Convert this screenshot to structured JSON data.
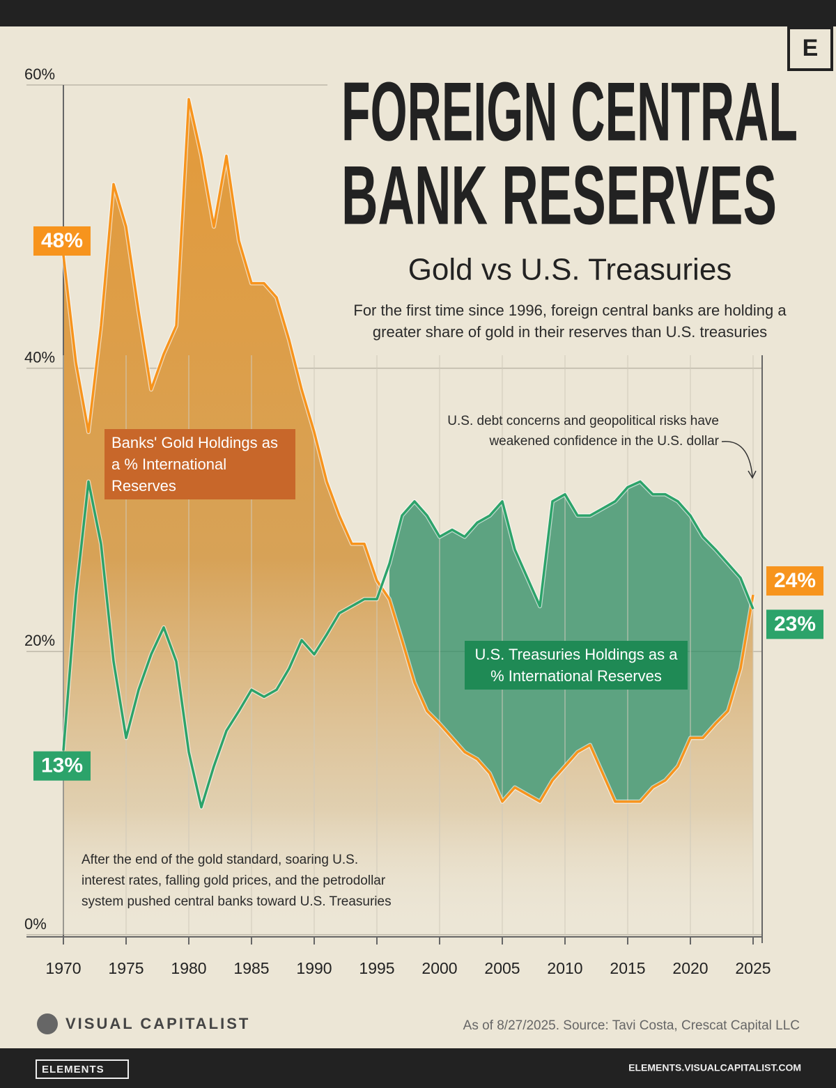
{
  "chart_data": {
    "type": "line",
    "logo": "E",
    "title_lines": [
      "FOREIGN CENTRAL",
      "BANK RESERVES"
    ],
    "subtitle": "Gold vs U.S. Treasuries",
    "description": "For the first time since 1996, foreign central banks are holding a greater share of gold in their reserves than U.S. treasuries",
    "annotations": [
      "U.S. debt concerns and geopolitical risks have weakened confidence in the U.S. dollar",
      "After the end of the gold standard, soaring U.S. interest rates, falling gold prices, and the petrodollar system pushed central banks toward U.S. Treasuries"
    ],
    "x": [
      1970,
      1971,
      1972,
      1973,
      1974,
      1975,
      1976,
      1977,
      1978,
      1979,
      1980,
      1981,
      1982,
      1983,
      1984,
      1985,
      1986,
      1987,
      1988,
      1989,
      1990,
      1991,
      1992,
      1993,
      1994,
      1995,
      1996,
      1997,
      1998,
      1999,
      2000,
      2001,
      2002,
      2003,
      2004,
      2005,
      2006,
      2007,
      2008,
      2009,
      2010,
      2011,
      2012,
      2013,
      2014,
      2015,
      2016,
      2017,
      2018,
      2019,
      2020,
      2021,
      2022,
      2023,
      2024,
      2025
    ],
    "xlim": [
      1970,
      2025
    ],
    "xticks": [
      1970,
      1975,
      1980,
      1985,
      1990,
      1995,
      2000,
      2005,
      2010,
      2015,
      2020,
      2025
    ],
    "ylim": [
      0,
      60
    ],
    "yticks": [
      {
        "value": 0,
        "label": "0%"
      },
      {
        "value": 20,
        "label": "20%"
      },
      {
        "value": 40,
        "label": "40%"
      },
      {
        "value": 60,
        "label": "60%"
      }
    ],
    "grid": true,
    "series": [
      {
        "name": "Banks' Gold Holdings as a % International Reserves",
        "color": "#f7941d",
        "values": [
          48,
          40.4,
          35.5,
          43,
          53,
          50,
          44,
          38.5,
          41,
          43,
          59,
          55,
          50,
          55,
          49,
          46,
          46,
          45,
          42,
          38.5,
          35.5,
          32,
          29.6,
          27.6,
          27.6,
          25,
          23.7,
          20.8,
          17.8,
          15.8,
          14.9,
          13.9,
          12.9,
          12.4,
          11.4,
          9.4,
          10.4,
          9.9,
          9.4,
          10.9,
          11.9,
          12.9,
          13.4,
          11.4,
          9.4,
          9.4,
          9.4,
          10.4,
          10.9,
          11.9,
          13.9,
          13.9,
          14.9,
          15.8,
          18.8,
          24
        ],
        "value_labels": [
          "48%",
          null,
          null,
          null,
          null,
          null,
          null,
          null,
          null,
          null,
          null,
          null,
          null,
          null,
          null,
          null,
          null,
          null,
          null,
          null,
          null,
          null,
          null,
          null,
          null,
          null,
          null,
          null,
          null,
          null,
          null,
          null,
          null,
          null,
          null,
          null,
          null,
          null,
          null,
          null,
          null,
          null,
          null,
          null,
          null,
          null,
          null,
          null,
          null,
          null,
          null,
          null,
          null,
          null,
          null,
          "24%"
        ]
      },
      {
        "name": "U.S. Treasuries Holdings as a % International Reserves",
        "color": "#2ca36a",
        "values": [
          13,
          24,
          32,
          27.6,
          19.3,
          13.9,
          17.3,
          19.8,
          21.7,
          19.3,
          12.9,
          9,
          11.9,
          14.4,
          15.8,
          17.3,
          16.8,
          17.3,
          18.8,
          20.8,
          19.8,
          21.2,
          22.7,
          23.2,
          23.7,
          23.7,
          26.2,
          29.6,
          30.6,
          29.6,
          28.1,
          28.6,
          28.1,
          29.1,
          29.6,
          30.6,
          27.2,
          25.2,
          23.2,
          30.6,
          31.1,
          29.6,
          29.6,
          30.1,
          30.6,
          31.6,
          32,
          31.1,
          31.1,
          30.6,
          29.6,
          28.1,
          27.2,
          26.2,
          25.2,
          23
        ],
        "value_labels": [
          "13%",
          null,
          null,
          null,
          null,
          null,
          null,
          null,
          null,
          null,
          null,
          null,
          null,
          null,
          null,
          null,
          null,
          null,
          null,
          null,
          null,
          null,
          null,
          null,
          null,
          null,
          null,
          null,
          null,
          null,
          null,
          null,
          null,
          null,
          null,
          null,
          null,
          null,
          null,
          null,
          null,
          null,
          null,
          null,
          null,
          null,
          null,
          null,
          null,
          null,
          null,
          null,
          null,
          null,
          null,
          "23%"
        ]
      }
    ],
    "brand": "VISUAL CAPITALIST",
    "source": "As of 8/27/2025. Source: Tavi Costa, Crescat Capital LLC",
    "footer_left": "ELEMENTS",
    "footer_right": "ELEMENTS.VISUALCAPITALIST.COM"
  }
}
